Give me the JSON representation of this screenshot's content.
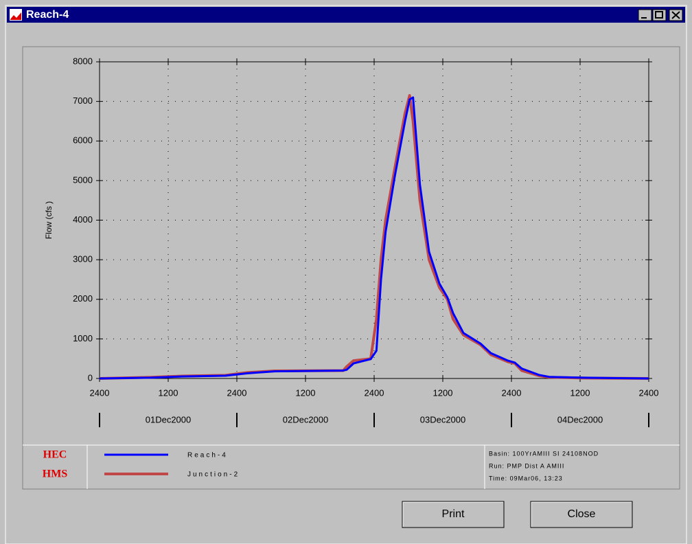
{
  "window": {
    "title": "Reach-4"
  },
  "chart_data": {
    "type": "line",
    "ylabel": "Flow (cfs   )",
    "x": [
      0,
      9,
      14.4,
      22,
      25.8,
      30.6,
      42.6,
      43.2,
      44.4,
      47.4,
      48.4,
      49.2,
      50,
      51.6,
      53.4,
      54.2,
      54.8,
      56,
      57.6,
      59.4,
      60.8,
      61.8,
      63.6,
      66.6,
      68.4,
      71.4,
      72.6,
      73.8,
      76.8,
      78.6,
      84.6,
      96
    ],
    "xlim": [
      0,
      96
    ],
    "xticks": [
      {
        "value": 0,
        "label": "2400"
      },
      {
        "value": 12,
        "label": "1200"
      },
      {
        "value": 24,
        "label": "2400"
      },
      {
        "value": 36,
        "label": "1200"
      },
      {
        "value": 48,
        "label": "2400"
      },
      {
        "value": 60,
        "label": "1200"
      },
      {
        "value": 72,
        "label": "2400"
      },
      {
        "value": 84,
        "label": "1200"
      },
      {
        "value": 96,
        "label": "2400"
      }
    ],
    "x_groups": [
      "01Dec2000",
      "02Dec2000",
      "03Dec2000",
      "04Dec2000"
    ],
    "ylim": [
      0,
      8000
    ],
    "yticks": [
      0,
      1000,
      2000,
      3000,
      4000,
      5000,
      6000,
      7000,
      8000
    ],
    "grid": true,
    "series": [
      {
        "name": "Reach-4",
        "color": "#0000ff",
        "values": [
          0,
          20,
          50,
          70,
          130,
          180,
          200,
          220,
          380,
          490,
          700,
          2500,
          3700,
          5100,
          6500,
          7050,
          7100,
          4900,
          3200,
          2400,
          2050,
          1650,
          1150,
          880,
          640,
          450,
          400,
          250,
          90,
          40,
          20,
          0
        ]
      },
      {
        "name": "Junction-2",
        "color": "#c04848",
        "values": [
          0,
          30,
          60,
          80,
          150,
          190,
          200,
          300,
          450,
          500,
          1500,
          3000,
          4000,
          5300,
          6700,
          7150,
          6500,
          4500,
          3000,
          2300,
          2000,
          1500,
          1100,
          850,
          600,
          420,
          380,
          200,
          70,
          30,
          10,
          0
        ]
      }
    ]
  },
  "legend_box": {
    "logo": [
      "HEC",
      "HMS"
    ],
    "info": [
      "Basin:  100YrAMIII SI 24108NOD",
      "Run:   PMP Dist A AMIII",
      "Time:  09Mar06, 13:23"
    ]
  },
  "buttons": [
    "Print",
    "Close"
  ]
}
